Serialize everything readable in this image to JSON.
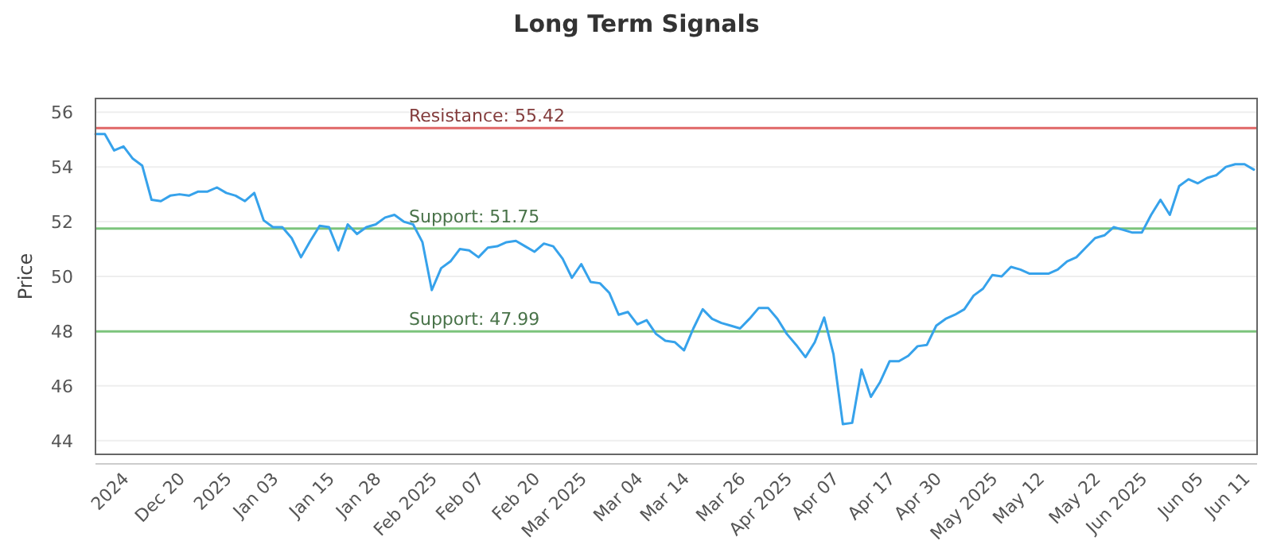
{
  "chart_data": {
    "type": "line",
    "title": "Long Term Signals",
    "ylabel": "Price",
    "categories": [
      null,
      null,
      null,
      "2024",
      null,
      null,
      null,
      null,
      null,
      "Dec 20",
      null,
      null,
      null,
      null,
      "2025",
      null,
      null,
      null,
      null,
      "Jan 03",
      null,
      null,
      null,
      null,
      null,
      "Jan 15",
      null,
      null,
      null,
      null,
      "Jan 28",
      null,
      null,
      null,
      null,
      null,
      "Feb 2025",
      null,
      null,
      null,
      null,
      "Feb 07",
      null,
      null,
      null,
      null,
      null,
      "Feb 20",
      null,
      null,
      null,
      null,
      "Mar 2025",
      null,
      null,
      null,
      null,
      null,
      "Mar 04",
      null,
      null,
      null,
      null,
      "Mar 14",
      null,
      null,
      null,
      null,
      null,
      "Mar 26",
      null,
      null,
      null,
      null,
      "Apr 2025",
      null,
      null,
      null,
      null,
      "Apr 07",
      null,
      null,
      null,
      null,
      null,
      "Apr 17",
      null,
      null,
      null,
      null,
      "Apr 30",
      null,
      null,
      null,
      null,
      null,
      "May 2025",
      null,
      null,
      null,
      null,
      "May 12",
      null,
      null,
      null,
      null,
      null,
      "May 22",
      null,
      null,
      null,
      null,
      "Jun 2025",
      null,
      null,
      null,
      null,
      null,
      "Jun 05",
      null,
      null,
      null,
      null,
      "Jun 11",
      null
    ],
    "series": [
      {
        "color": "#36a2eb",
        "values": [
          55.2,
          55.2,
          54.6,
          54.75,
          54.3,
          54.05,
          52.8,
          52.75,
          52.95,
          53.0,
          52.95,
          53.1,
          53.1,
          53.25,
          53.05,
          52.95,
          52.75,
          53.05,
          52.05,
          51.8,
          51.8,
          51.4,
          50.7,
          51.3,
          51.85,
          51.8,
          50.95,
          51.9,
          51.55,
          51.8,
          51.9,
          52.15,
          52.25,
          52.0,
          51.9,
          51.25,
          49.5,
          50.3,
          50.55,
          51.0,
          50.95,
          50.7,
          51.05,
          51.1,
          51.25,
          51.3,
          51.1,
          50.9,
          51.2,
          51.1,
          50.65,
          49.95,
          50.45,
          49.8,
          49.75,
          49.4,
          48.6,
          48.7,
          48.25,
          48.4,
          47.9,
          47.65,
          47.6,
          47.3,
          48.1,
          48.8,
          48.45,
          48.3,
          48.2,
          48.1,
          48.45,
          48.85,
          48.85,
          48.45,
          47.9,
          47.5,
          47.05,
          47.6,
          48.5,
          47.15,
          44.6,
          44.65,
          46.6,
          45.6,
          46.15,
          46.9,
          46.9,
          47.1,
          47.45,
          47.5,
          48.2,
          48.45,
          48.6,
          48.8,
          49.3,
          49.55,
          50.05,
          50.0,
          50.35,
          50.25,
          50.1,
          50.1,
          50.1,
          50.25,
          50.55,
          50.7,
          51.05,
          51.4,
          51.5,
          51.8,
          51.7,
          51.6,
          51.6,
          52.25,
          52.8,
          52.25,
          53.3,
          53.55,
          53.4,
          53.6,
          53.7,
          54.0,
          54.1,
          54.1,
          53.9
        ]
      }
    ],
    "ylim": [
      43.5,
      56.5
    ],
    "yticks": [
      44,
      46,
      48,
      50,
      52,
      54,
      56
    ],
    "grid": "y",
    "marker": "none",
    "line_style": "solid",
    "ref_lines": [
      {
        "axis": "y",
        "value": 55.42,
        "label": "Resistance: 55.42",
        "color": "#e06666"
      },
      {
        "axis": "y",
        "value": 51.75,
        "label": "Support: 51.75",
        "color": "#7cc47c"
      },
      {
        "axis": "y",
        "value": 47.99,
        "label": "Support: 47.99",
        "color": "#7cc47c"
      }
    ]
  }
}
